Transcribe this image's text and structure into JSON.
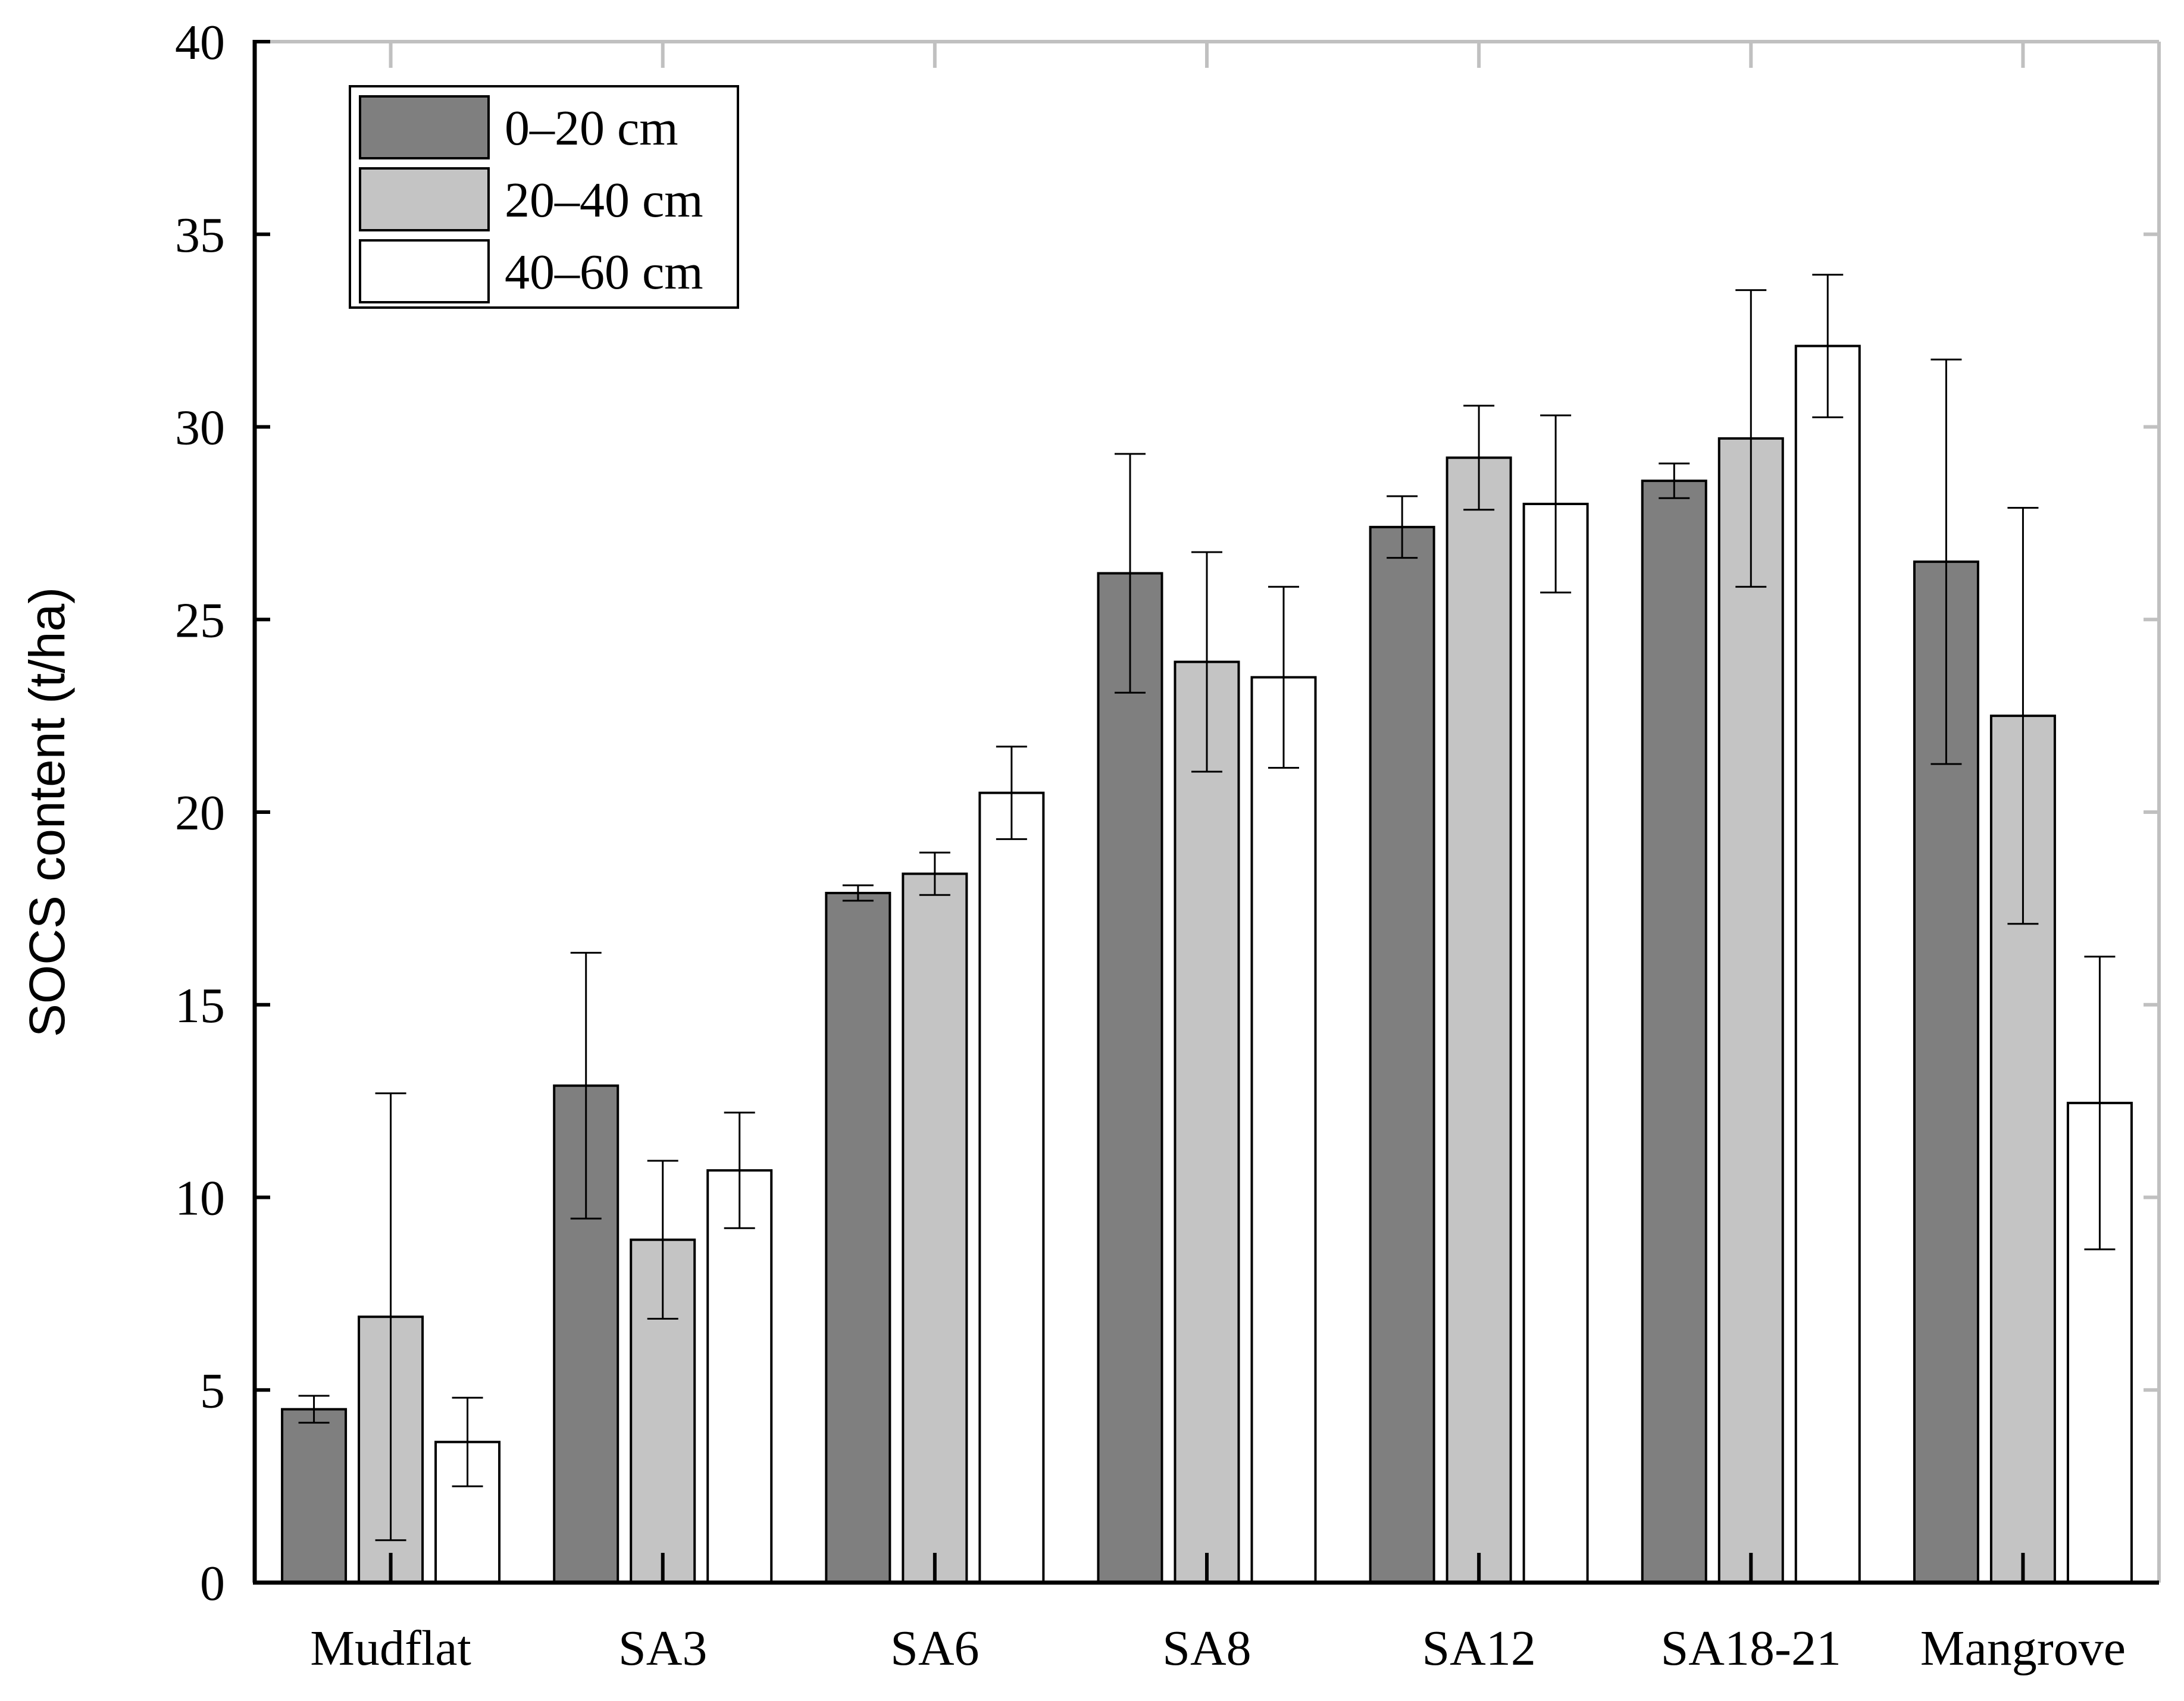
{
  "chart_data": {
    "type": "bar",
    "title": "",
    "xlabel": "",
    "ylabel": "SOCS content (t/ha)",
    "ylim": [
      0,
      40
    ],
    "yticks": [
      "0",
      "5",
      "10",
      "15",
      "20",
      "25",
      "30",
      "35",
      "40"
    ],
    "grid": false,
    "legend_position": "top-left",
    "categories": [
      "Mudflat",
      "SA3",
      "SA6",
      "SA8",
      "SA12",
      "SA18-21",
      "Mangrove"
    ],
    "series": [
      {
        "name": "0–20 cm",
        "color": "#7f7f7f",
        "values": [
          4.5,
          12.9,
          17.9,
          26.2,
          27.4,
          28.6,
          26.5
        ],
        "errors": [
          0.35,
          3.45,
          0.2,
          3.1,
          0.8,
          0.45,
          5.25
        ]
      },
      {
        "name": "20–40 cm",
        "color": "#c4c4c4",
        "values": [
          6.9,
          8.9,
          18.4,
          23.9,
          29.2,
          29.7,
          22.5
        ],
        "errors": [
          5.8,
          2.05,
          0.55,
          2.85,
          1.35,
          3.85,
          5.4
        ]
      },
      {
        "name": "40–60 cm",
        "color": "#ffffff",
        "values": [
          3.65,
          10.7,
          20.5,
          23.5,
          28.0,
          32.1,
          12.45
        ],
        "errors": [
          1.15,
          1.5,
          1.2,
          2.35,
          2.3,
          1.85,
          3.8
        ]
      }
    ]
  }
}
